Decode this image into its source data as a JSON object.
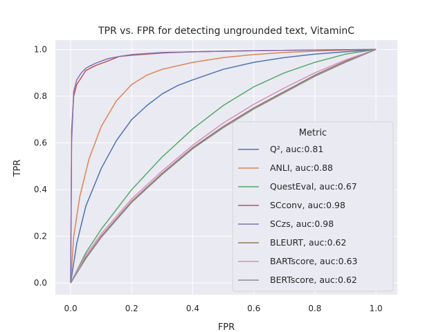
{
  "chart_data": {
    "type": "line",
    "title": "TPR vs. FPR for detecting ungrounded text, VitaminC",
    "xlabel": "FPR",
    "ylabel": "TPR",
    "xlim": [
      -0.05,
      1.07
    ],
    "ylim": [
      -0.05,
      1.04
    ],
    "xticks": [
      "0.0",
      "0.2",
      "0.4",
      "0.6",
      "0.8",
      "1.0"
    ],
    "yticks": [
      "0.0",
      "0.2",
      "0.4",
      "0.6",
      "0.8",
      "1.0"
    ],
    "grid": true,
    "background": "#eaeaf2",
    "legend": {
      "title": "Metric",
      "placement": "lower-right"
    },
    "series": [
      {
        "name": "Q², auc:0.81",
        "color": "#4c72b0",
        "x": [
          0,
          0.02,
          0.05,
          0.1,
          0.15,
          0.2,
          0.25,
          0.3,
          0.35,
          0.4,
          0.5,
          0.6,
          0.7,
          0.8,
          0.9,
          1.0
        ],
        "y": [
          0,
          0.17,
          0.33,
          0.49,
          0.61,
          0.7,
          0.76,
          0.81,
          0.845,
          0.87,
          0.915,
          0.945,
          0.965,
          0.98,
          0.99,
          1.0
        ]
      },
      {
        "name": "ANLI, auc:0.88",
        "color": "#dd8452",
        "x": [
          0,
          0.01,
          0.03,
          0.06,
          0.1,
          0.15,
          0.2,
          0.25,
          0.3,
          0.4,
          0.5,
          0.6,
          0.7,
          0.8,
          0.9,
          1.0
        ],
        "y": [
          0,
          0.2,
          0.37,
          0.53,
          0.67,
          0.78,
          0.85,
          0.89,
          0.915,
          0.945,
          0.965,
          0.978,
          0.987,
          0.993,
          0.997,
          1.0
        ]
      },
      {
        "name": "QuestEval, auc:0.67",
        "color": "#55a868",
        "x": [
          0,
          0.05,
          0.1,
          0.2,
          0.3,
          0.4,
          0.5,
          0.6,
          0.7,
          0.8,
          0.9,
          1.0
        ],
        "y": [
          0,
          0.13,
          0.23,
          0.4,
          0.54,
          0.66,
          0.76,
          0.84,
          0.9,
          0.945,
          0.98,
          1.0
        ]
      },
      {
        "name": "SCconv, auc:0.98",
        "color": "#c44e52",
        "x": [
          0,
          0.003,
          0.01,
          0.02,
          0.035,
          0.05,
          0.08,
          0.12,
          0.16,
          0.2,
          0.3,
          0.4,
          0.6,
          0.8,
          1.0
        ],
        "y": [
          0,
          0.65,
          0.8,
          0.85,
          0.88,
          0.91,
          0.93,
          0.95,
          0.97,
          0.975,
          0.985,
          0.99,
          0.995,
          0.998,
          1.0
        ]
      },
      {
        "name": "SCzs, auc:0.98",
        "color": "#8172b3",
        "x": [
          0,
          0.003,
          0.01,
          0.02,
          0.035,
          0.05,
          0.08,
          0.12,
          0.16,
          0.2,
          0.3,
          0.4,
          0.6,
          0.8,
          1.0
        ],
        "y": [
          0,
          0.6,
          0.82,
          0.87,
          0.9,
          0.92,
          0.94,
          0.96,
          0.97,
          0.978,
          0.987,
          0.99,
          0.995,
          0.998,
          1.0
        ]
      },
      {
        "name": "BLEURT, auc:0.62",
        "color": "#937860",
        "x": [
          0,
          0.05,
          0.1,
          0.2,
          0.3,
          0.4,
          0.5,
          0.6,
          0.7,
          0.8,
          0.9,
          1.0
        ],
        "y": [
          0,
          0.11,
          0.2,
          0.35,
          0.47,
          0.58,
          0.67,
          0.75,
          0.82,
          0.89,
          0.95,
          1.0
        ]
      },
      {
        "name": "BARTscore, auc:0.63",
        "color": "#da8bc3",
        "x": [
          0,
          0.05,
          0.1,
          0.2,
          0.3,
          0.4,
          0.5,
          0.6,
          0.7,
          0.8,
          0.9,
          1.0
        ],
        "y": [
          0,
          0.12,
          0.21,
          0.36,
          0.48,
          0.59,
          0.685,
          0.765,
          0.835,
          0.9,
          0.955,
          1.0
        ]
      },
      {
        "name": "BERTscore, auc:0.62",
        "color": "#8c8c8c",
        "x": [
          0,
          0.05,
          0.1,
          0.2,
          0.3,
          0.4,
          0.5,
          0.6,
          0.7,
          0.8,
          0.9,
          1.0
        ],
        "y": [
          0,
          0.105,
          0.195,
          0.345,
          0.465,
          0.575,
          0.665,
          0.745,
          0.815,
          0.885,
          0.945,
          1.0
        ]
      }
    ]
  }
}
